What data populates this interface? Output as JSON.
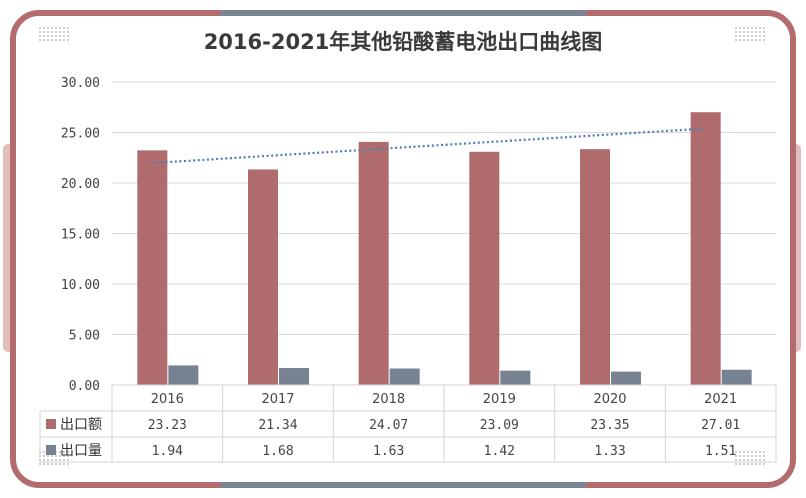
{
  "colors": {
    "frame": "#b36b6e",
    "frame_accent": "#7a8492",
    "side_tab": "#e2bdb9",
    "series_export_value": "#b06b6d",
    "series_export_volume": "#778393",
    "trendline": "#4f7db3",
    "grid": "#d9d9d9"
  },
  "chart_data": {
    "type": "bar",
    "title": "2016-2021年其他铅酸蓄电池出口曲线图",
    "categories": [
      "2016",
      "2017",
      "2018",
      "2019",
      "2020",
      "2021"
    ],
    "series": [
      {
        "name": "出口额",
        "values": [
          23.23,
          21.34,
          24.07,
          23.09,
          23.35,
          27.01
        ],
        "labels": [
          "23.23",
          "21.34",
          "24.07",
          "23.09",
          "23.35",
          "27.01"
        ]
      },
      {
        "name": "出口量",
        "values": [
          1.94,
          1.68,
          1.63,
          1.42,
          1.33,
          1.51
        ],
        "labels": [
          "1.94",
          "1.68",
          "1.63",
          "1.42",
          "1.33",
          "1.51"
        ]
      }
    ],
    "ylim": [
      0,
      30
    ],
    "yticks": [
      "0.00",
      "5.00",
      "10.00",
      "15.00",
      "20.00",
      "25.00",
      "30.00"
    ],
    "grid": true,
    "legend": "data-table-below",
    "trendline": {
      "series": "出口额",
      "kind": "linear",
      "style": "dotted"
    }
  }
}
